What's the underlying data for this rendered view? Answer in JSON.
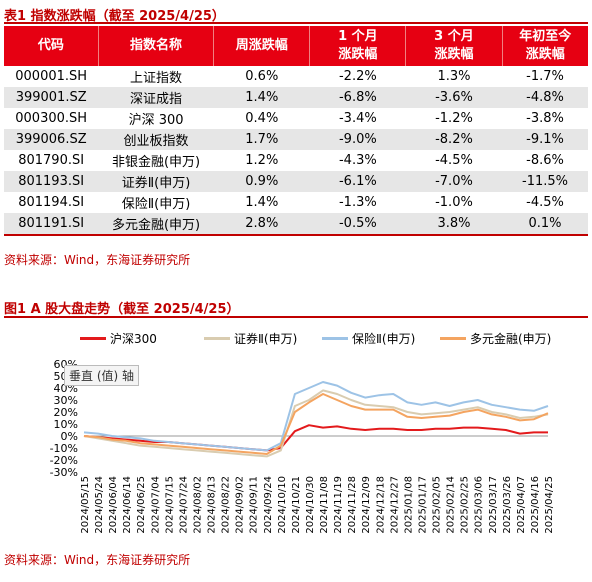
{
  "table": {
    "title": "表1  指数涨跌幅（截至 2025/4/25）",
    "headers": [
      "代码",
      "指数名称",
      "周涨跌幅",
      "1 个月\n涨跌幅",
      "3 个月\n涨跌幅",
      "年初至今\n涨跌幅"
    ],
    "rows": [
      [
        "000001.SH",
        "上证指数",
        "0.6%",
        "-2.2%",
        "1.3%",
        "-1.7%"
      ],
      [
        "399001.SZ",
        "深证成指",
        "1.4%",
        "-6.8%",
        "-3.6%",
        "-4.8%"
      ],
      [
        "000300.SH",
        "沪深 300",
        "0.4%",
        "-3.4%",
        "-1.2%",
        "-3.8%"
      ],
      [
        "399006.SZ",
        "创业板指数",
        "1.7%",
        "-9.0%",
        "-8.2%",
        "-9.1%"
      ],
      [
        "801790.SI",
        "非银金融(申万)",
        "1.2%",
        "-4.3%",
        "-4.5%",
        "-8.6%"
      ],
      [
        "801193.SI",
        "证券Ⅱ(申万)",
        "0.9%",
        "-6.1%",
        "-7.0%",
        "-11.5%"
      ],
      [
        "801194.SI",
        "保险Ⅱ(申万)",
        "1.4%",
        "-1.3%",
        "-1.0%",
        "-4.5%"
      ],
      [
        "801191.SI",
        "多元金融(申万)",
        "2.8%",
        "-0.5%",
        "3.8%",
        "0.1%"
      ]
    ],
    "source": "资料来源：Wind，东海证券研究所"
  },
  "figure": {
    "title": "图1  A 股大盘走势（截至 2025/4/25）",
    "tooltip": "垂直 (值) 轴",
    "source": "资料来源：Wind，东海证券研究所"
  },
  "colors": {
    "accent": "#c00000",
    "header_bg": "#e60012"
  },
  "chart_data": {
    "type": "line",
    "ylim": [
      -30,
      60
    ],
    "yticks": [
      "60%",
      "50%",
      "40%",
      "30%",
      "20%",
      "10%",
      "0%",
      "-10%",
      "-20%",
      "-30%"
    ],
    "x_labels": [
      "2024/05/15",
      "2024/05/24",
      "2024/06/04",
      "2024/06/14",
      "2024/06/25",
      "2024/07/04",
      "2024/07/15",
      "2024/07/24",
      "2024/08/02",
      "2024/08/13",
      "2024/08/22",
      "2024/09/02",
      "2024/09/11",
      "2024/09/24",
      "2024/10/10",
      "2024/10/21",
      "2024/10/30",
      "2024/11/08",
      "2024/11/19",
      "2024/11/28",
      "2024/12/09",
      "2024/12/18",
      "2024/12/27",
      "2025/01/08",
      "2025/01/17",
      "2025/02/05",
      "2025/02/14",
      "2025/02/25",
      "2025/03/06",
      "2025/03/17",
      "2025/03/26",
      "2025/04/07",
      "2025/04/16",
      "2025/04/25"
    ],
    "series": [
      {
        "name": "沪深300",
        "color": "#e31a1c",
        "values": [
          0,
          -1,
          -2,
          -3,
          -4,
          -5,
          -5,
          -6,
          -7,
          -8,
          -9,
          -10,
          -11,
          -12,
          -10,
          4,
          9,
          7,
          8,
          6,
          5,
          6,
          6,
          5,
          5,
          6,
          6,
          7,
          7,
          6,
          5,
          2,
          3,
          3
        ]
      },
      {
        "name": "证券Ⅱ(申万)",
        "color": "#d9ccb0",
        "values": [
          0,
          -2,
          -4,
          -6,
          -8,
          -9,
          -10,
          -11,
          -12,
          -13,
          -14,
          -15,
          -16,
          -17,
          -12,
          25,
          30,
          38,
          35,
          30,
          26,
          25,
          24,
          20,
          18,
          19,
          20,
          22,
          24,
          20,
          18,
          15,
          16,
          18
        ]
      },
      {
        "name": "保险Ⅱ(申万)",
        "color": "#9dc3e6",
        "values": [
          3,
          2,
          0,
          -1,
          -2,
          -4,
          -5,
          -6,
          -7,
          -8,
          -9,
          -10,
          -11,
          -12,
          -6,
          35,
          40,
          45,
          42,
          36,
          32,
          34,
          35,
          28,
          26,
          28,
          25,
          28,
          30,
          26,
          24,
          22,
          21,
          25
        ]
      },
      {
        "name": "多元金融(申万)",
        "color": "#f4a460",
        "values": [
          0,
          -1,
          -3,
          -4,
          -6,
          -7,
          -8,
          -9,
          -10,
          -11,
          -12,
          -13,
          -14,
          -15,
          -8,
          20,
          28,
          35,
          30,
          25,
          22,
          22,
          22,
          16,
          15,
          16,
          17,
          20,
          22,
          18,
          16,
          13,
          14,
          19
        ]
      }
    ]
  }
}
